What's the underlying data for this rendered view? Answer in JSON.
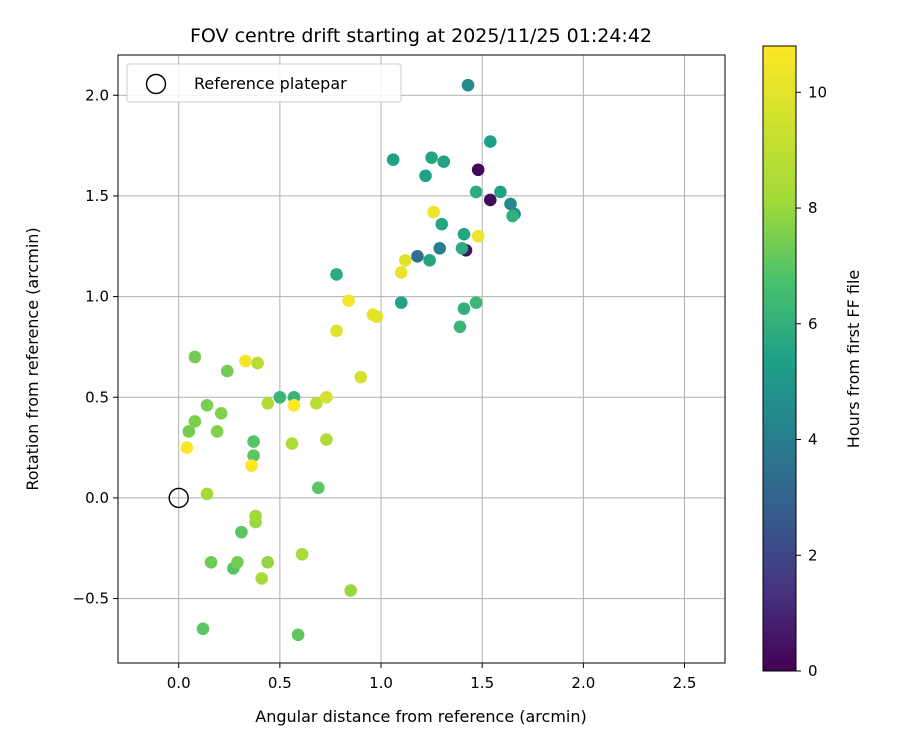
{
  "chart_data": {
    "type": "scatter",
    "title": "FOV centre drift starting at 2025/11/25 01:24:42",
    "xlabel": "Angular distance from reference (arcmin)",
    "ylabel": "Rotation from reference (arcmin)",
    "xlim": [
      -0.3,
      2.7
    ],
    "ylim": [
      -0.82,
      2.2
    ],
    "xticks": [
      0.0,
      0.5,
      1.0,
      1.5,
      2.0,
      2.5
    ],
    "xtick_labels": [
      "0.0",
      "0.5",
      "1.0",
      "1.5",
      "2.0",
      "2.5"
    ],
    "yticks": [
      -0.5,
      0.0,
      0.5,
      1.0,
      1.5,
      2.0
    ],
    "ytick_labels": [
      "−0.5",
      "0.0",
      "0.5",
      "1.0",
      "1.5",
      "2.0"
    ],
    "grid": true,
    "legend": {
      "position": "top-left",
      "label": "Reference platepar"
    },
    "reference_point": {
      "x": 0.0,
      "y": 0.0
    },
    "colorbar": {
      "label": "Hours from first FF file",
      "range": [
        0,
        10.8
      ],
      "ticks": [
        0,
        2,
        4,
        6,
        8,
        10
      ],
      "tick_labels": [
        "0",
        "2",
        "4",
        "6",
        "8",
        "10"
      ],
      "colormap": "viridis"
    },
    "points": [
      {
        "x": 1.48,
        "y": 1.63,
        "c": 0.2
      },
      {
        "x": 1.54,
        "y": 1.48,
        "c": 0.3
      },
      {
        "x": 1.42,
        "y": 1.23,
        "c": 0.5
      },
      {
        "x": 1.43,
        "y": 2.05,
        "c": 4.5
      },
      {
        "x": 1.18,
        "y": 1.2,
        "c": 3.5
      },
      {
        "x": 1.29,
        "y": 1.24,
        "c": 4.0
      },
      {
        "x": 1.64,
        "y": 1.46,
        "c": 4.5
      },
      {
        "x": 1.66,
        "y": 1.41,
        "c": 4.6
      },
      {
        "x": 1.54,
        "y": 1.77,
        "c": 5.4
      },
      {
        "x": 1.06,
        "y": 1.68,
        "c": 5.4
      },
      {
        "x": 1.25,
        "y": 1.69,
        "c": 5.5
      },
      {
        "x": 1.31,
        "y": 1.67,
        "c": 5.5
      },
      {
        "x": 1.22,
        "y": 1.6,
        "c": 5.4
      },
      {
        "x": 1.59,
        "y": 1.52,
        "c": 5.5
      },
      {
        "x": 1.47,
        "y": 1.52,
        "c": 5.9
      },
      {
        "x": 1.3,
        "y": 1.36,
        "c": 5.6
      },
      {
        "x": 1.41,
        "y": 1.31,
        "c": 5.6
      },
      {
        "x": 1.24,
        "y": 1.18,
        "c": 5.6
      },
      {
        "x": 1.4,
        "y": 1.24,
        "c": 5.8
      },
      {
        "x": 1.65,
        "y": 1.4,
        "c": 6.0
      },
      {
        "x": 0.78,
        "y": 1.11,
        "c": 5.8
      },
      {
        "x": 1.1,
        "y": 0.97,
        "c": 5.5
      },
      {
        "x": 1.41,
        "y": 0.94,
        "c": 6.0
      },
      {
        "x": 1.47,
        "y": 0.97,
        "c": 6.3
      },
      {
        "x": 1.39,
        "y": 0.85,
        "c": 6.3
      },
      {
        "x": 0.5,
        "y": 0.5,
        "c": 6.3
      },
      {
        "x": 0.57,
        "y": 0.5,
        "c": 6.2
      },
      {
        "x": 0.37,
        "y": 0.28,
        "c": 6.9
      },
      {
        "x": 0.37,
        "y": 0.21,
        "c": 7.0
      },
      {
        "x": 0.69,
        "y": 0.05,
        "c": 7.0
      },
      {
        "x": 0.31,
        "y": -0.17,
        "c": 7.0
      },
      {
        "x": 0.27,
        "y": -0.35,
        "c": 7.0
      },
      {
        "x": 0.12,
        "y": -0.65,
        "c": 7.0
      },
      {
        "x": 0.59,
        "y": -0.68,
        "c": 7.1
      },
      {
        "x": 0.16,
        "y": -0.32,
        "c": 7.3
      },
      {
        "x": 0.29,
        "y": -0.32,
        "c": 7.4
      },
      {
        "x": 0.08,
        "y": 0.7,
        "c": 7.4
      },
      {
        "x": 0.24,
        "y": 0.63,
        "c": 7.4
      },
      {
        "x": 0.05,
        "y": 0.33,
        "c": 7.4
      },
      {
        "x": 0.08,
        "y": 0.38,
        "c": 7.5
      },
      {
        "x": 0.14,
        "y": 0.46,
        "c": 7.5
      },
      {
        "x": 0.21,
        "y": 0.42,
        "c": 7.6
      },
      {
        "x": 0.19,
        "y": 0.33,
        "c": 7.6
      },
      {
        "x": 0.44,
        "y": -0.32,
        "c": 7.9
      },
      {
        "x": 0.38,
        "y": -0.12,
        "c": 8.0
      },
      {
        "x": 0.38,
        "y": -0.09,
        "c": 8.1
      },
      {
        "x": 0.14,
        "y": 0.02,
        "c": 8.2
      },
      {
        "x": 0.41,
        "y": -0.4,
        "c": 8.3
      },
      {
        "x": 0.61,
        "y": -0.28,
        "c": 8.3
      },
      {
        "x": 0.85,
        "y": -0.46,
        "c": 8.0
      },
      {
        "x": 0.56,
        "y": 0.27,
        "c": 8.5
      },
      {
        "x": 0.73,
        "y": 0.29,
        "c": 8.6
      },
      {
        "x": 0.44,
        "y": 0.47,
        "c": 8.6
      },
      {
        "x": 0.68,
        "y": 0.47,
        "c": 8.8
      },
      {
        "x": 0.39,
        "y": 0.67,
        "c": 8.7
      },
      {
        "x": 0.73,
        "y": 0.5,
        "c": 9.6
      },
      {
        "x": 0.9,
        "y": 0.6,
        "c": 9.6
      },
      {
        "x": 0.78,
        "y": 0.83,
        "c": 9.9
      },
      {
        "x": 0.96,
        "y": 0.91,
        "c": 10.1
      },
      {
        "x": 0.98,
        "y": 0.9,
        "c": 10.0
      },
      {
        "x": 1.1,
        "y": 1.12,
        "c": 10.2
      },
      {
        "x": 1.12,
        "y": 1.18,
        "c": 10.0
      },
      {
        "x": 1.48,
        "y": 1.3,
        "c": 10.3
      },
      {
        "x": 1.26,
        "y": 1.42,
        "c": 10.4
      },
      {
        "x": 0.84,
        "y": 0.98,
        "c": 10.5
      },
      {
        "x": 0.33,
        "y": 0.68,
        "c": 10.6
      },
      {
        "x": 0.04,
        "y": 0.25,
        "c": 10.7
      },
      {
        "x": 0.57,
        "y": 0.46,
        "c": 10.7
      },
      {
        "x": 0.36,
        "y": 0.16,
        "c": 10.8
      }
    ]
  }
}
